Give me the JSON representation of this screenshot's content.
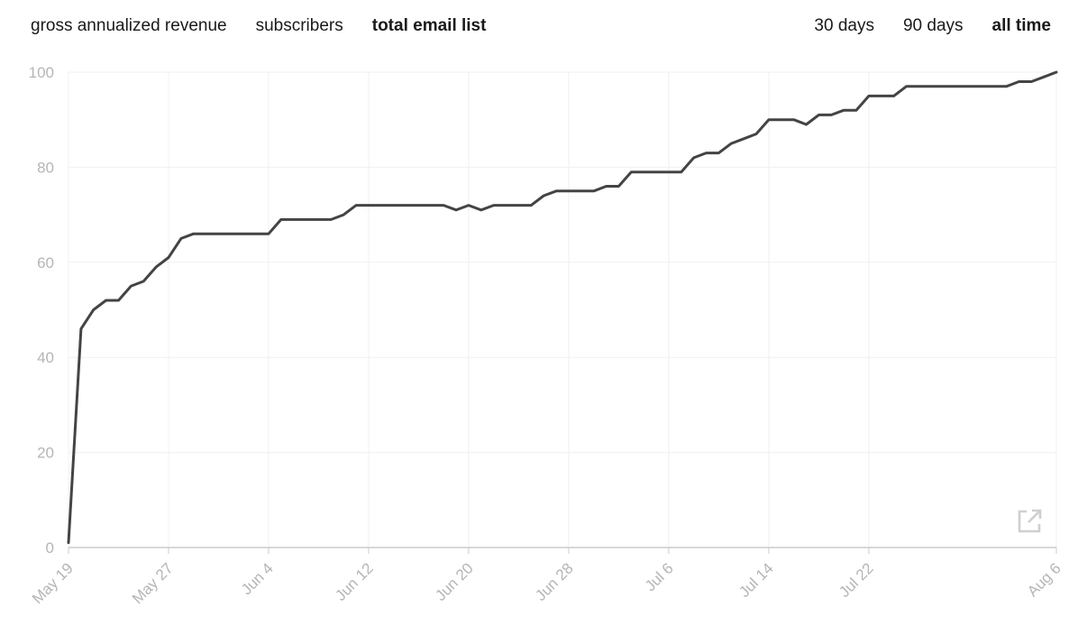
{
  "tabs": [
    {
      "label": "gross annualized revenue",
      "active": false
    },
    {
      "label": "subscribers",
      "active": false
    },
    {
      "label": "total email list",
      "active": true
    }
  ],
  "ranges": [
    {
      "label": "30 days",
      "active": false
    },
    {
      "label": "90 days",
      "active": false
    },
    {
      "label": "all time",
      "active": true
    }
  ],
  "expand_icon": "external-link-icon",
  "chart_data": {
    "type": "line",
    "title": "",
    "xlabel": "",
    "ylabel": "",
    "ylim": [
      0,
      100
    ],
    "yticks": [
      0,
      20,
      40,
      60,
      80,
      100
    ],
    "xlim": [
      "May 19",
      "Aug 6"
    ],
    "xticks": [
      "May 19",
      "May 27",
      "Jun 4",
      "Jun 12",
      "Jun 20",
      "Jun 28",
      "Jul 6",
      "Jul 14",
      "Jul 22",
      "Aug 6"
    ],
    "grid": true,
    "line_color": "#444444",
    "x": [
      "May 19",
      "May 20",
      "May 21",
      "May 22",
      "May 23",
      "May 24",
      "May 25",
      "May 26",
      "May 27",
      "May 28",
      "May 29",
      "May 30",
      "May 31",
      "Jun 1",
      "Jun 2",
      "Jun 3",
      "Jun 4",
      "Jun 5",
      "Jun 6",
      "Jun 7",
      "Jun 8",
      "Jun 9",
      "Jun 10",
      "Jun 11",
      "Jun 12",
      "Jun 13",
      "Jun 14",
      "Jun 15",
      "Jun 16",
      "Jun 17",
      "Jun 18",
      "Jun 19",
      "Jun 20",
      "Jun 21",
      "Jun 22",
      "Jun 23",
      "Jun 24",
      "Jun 25",
      "Jun 26",
      "Jun 27",
      "Jun 28",
      "Jun 29",
      "Jun 30",
      "Jul 1",
      "Jul 2",
      "Jul 3",
      "Jul 4",
      "Jul 5",
      "Jul 6",
      "Jul 7",
      "Jul 8",
      "Jul 9",
      "Jul 10",
      "Jul 11",
      "Jul 12",
      "Jul 13",
      "Jul 14",
      "Jul 15",
      "Jul 16",
      "Jul 17",
      "Jul 18",
      "Jul 19",
      "Jul 20",
      "Jul 21",
      "Jul 22",
      "Jul 23",
      "Jul 24",
      "Jul 25",
      "Jul 26",
      "Jul 27",
      "Jul 28",
      "Jul 29",
      "Jul 30",
      "Jul 31",
      "Aug 1",
      "Aug 2",
      "Aug 3",
      "Aug 4",
      "Aug 5",
      "Aug 6"
    ],
    "y": [
      1,
      46,
      50,
      52,
      52,
      55,
      56,
      59,
      61,
      65,
      66,
      66,
      66,
      66,
      66,
      66,
      66,
      69,
      69,
      69,
      69,
      69,
      70,
      72,
      72,
      72,
      72,
      72,
      72,
      72,
      72,
      71,
      72,
      71,
      72,
      72,
      72,
      72,
      74,
      75,
      75,
      75,
      75,
      76,
      76,
      79,
      79,
      79,
      79,
      79,
      82,
      83,
      83,
      85,
      86,
      87,
      90,
      90,
      90,
      89,
      91,
      91,
      92,
      92,
      95,
      95,
      95,
      97,
      97,
      97,
      97,
      97,
      97,
      97,
      97,
      97,
      98,
      98,
      99,
      100
    ]
  }
}
